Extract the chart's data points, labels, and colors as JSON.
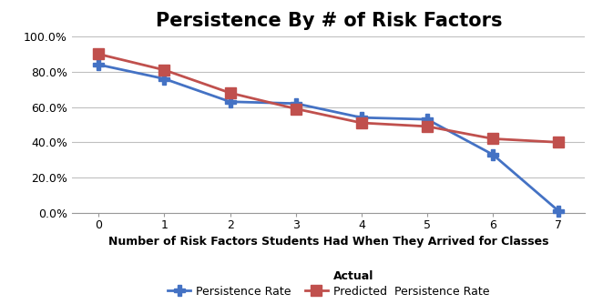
{
  "title": "Persistence By # of Risk Factors",
  "xlabel": "Number of Risk Factors Students Had When They Arrived for Classes",
  "x_values": [
    0,
    1,
    2,
    3,
    4,
    5,
    6,
    7
  ],
  "actual_values": [
    0.84,
    0.76,
    0.63,
    0.62,
    0.54,
    0.53,
    0.33,
    0.01
  ],
  "predicted_values": [
    0.9,
    0.81,
    0.68,
    0.59,
    0.51,
    0.49,
    0.42,
    0.4
  ],
  "actual_color": "#4472C4",
  "predicted_color": "#C0504D",
  "ylim": [
    0.0,
    1.0
  ],
  "yticks": [
    0.0,
    0.2,
    0.4,
    0.6,
    0.8,
    1.0
  ],
  "ytick_labels": [
    "0.0%",
    "20.0%",
    "40.0%",
    "60.0%",
    "80.0%",
    "100.0%"
  ],
  "background_color": "#ffffff",
  "grid_color": "#bfbfbf",
  "title_fontsize": 15,
  "xlabel_fontsize": 9,
  "tick_fontsize": 9,
  "legend_fontsize": 9
}
